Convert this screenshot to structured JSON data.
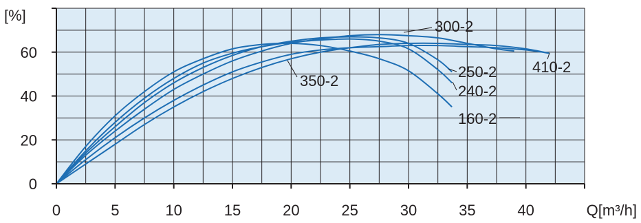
{
  "chart_data": {
    "type": "line",
    "title": "",
    "ylabel": "[%]",
    "xlabel": "Q[m³/h]",
    "xlim": [
      0,
      45
    ],
    "ylim": [
      0,
      80
    ],
    "xticks": [
      0,
      5,
      10,
      15,
      20,
      25,
      30,
      35,
      40
    ],
    "yticks": [
      0,
      20,
      40,
      60
    ],
    "grid": true,
    "colors": {
      "plot_bg": "#dcebf6",
      "grid": "#231f20",
      "series": "#1f6fb4",
      "axis": "#231f20"
    },
    "series": [
      {
        "name": "160-2",
        "x": [
          0,
          2.5,
          5,
          7.5,
          10,
          12.5,
          15,
          17.5,
          20,
          22.5,
          25,
          27.5,
          30,
          32.5,
          33.7
        ],
        "y": [
          0,
          17,
          31,
          42,
          51,
          57,
          61.5,
          63.5,
          64,
          63,
          60.5,
          57,
          51.5,
          41,
          35
        ]
      },
      {
        "name": "240-2",
        "x": [
          0,
          2.5,
          5,
          7.5,
          10,
          12.5,
          15,
          17.5,
          20,
          22.5,
          25,
          27.5,
          30,
          32.5,
          33.7
        ],
        "y": [
          0,
          15,
          28,
          39,
          48,
          55,
          59.5,
          62.5,
          64.5,
          65.5,
          66,
          65,
          61.5,
          52,
          46
        ]
      },
      {
        "name": "250-2",
        "x": [
          0,
          2.5,
          5,
          7.5,
          10,
          12.5,
          15,
          17.5,
          20,
          22.5,
          25,
          27.5,
          30,
          32.5,
          33.7
        ],
        "y": [
          0,
          14,
          26,
          37,
          46,
          53,
          58.5,
          62.5,
          65,
          66.5,
          67,
          66.5,
          64,
          56.5,
          51
        ]
      },
      {
        "name": "300-2",
        "x": [
          0,
          2.5,
          5,
          7.5,
          10,
          12.5,
          15,
          17.5,
          20,
          22.5,
          25,
          27.5,
          30,
          32.5,
          35,
          37.5,
          39
        ],
        "y": [
          0,
          13,
          24,
          34,
          43,
          50,
          56,
          60.5,
          64,
          66,
          67.5,
          68,
          67.5,
          66.5,
          64,
          61.5,
          60.5
        ]
      },
      {
        "name": "350-2",
        "x": [
          0,
          2.5,
          5,
          7.5,
          10,
          12.5,
          15,
          17.5,
          20,
          22.5,
          25,
          27.5,
          30,
          32.5,
          35,
          37.5,
          40,
          42
        ],
        "y": [
          0,
          11,
          21,
          30,
          38,
          45,
          51,
          55.5,
          59,
          61,
          62,
          62.5,
          63,
          63,
          62.5,
          62,
          61,
          59.5
        ]
      },
      {
        "name": "410-2",
        "x": [
          0,
          2.5,
          5,
          7.5,
          10,
          12.5,
          15,
          17.5,
          20,
          22.5,
          25,
          27.5,
          30,
          32.5,
          35,
          37.5,
          40,
          42
        ],
        "y": [
          0,
          9,
          18,
          27,
          35,
          42,
          48,
          53,
          57,
          60,
          62,
          63.5,
          64,
          64,
          63.5,
          63,
          61.5,
          59.5
        ]
      }
    ],
    "annotations": [
      {
        "text": "300-2",
        "series": "300-2",
        "at_x": 29.5
      },
      {
        "text": "350-2",
        "series": "350-2",
        "at_x": 19.5
      },
      {
        "text": "250-2",
        "series": "250-2",
        "at_x": 33.7
      },
      {
        "text": "240-2",
        "series": "240-2",
        "at_x": 33.7
      },
      {
        "text": "160-2",
        "series": "160-2",
        "at_x": 33.7
      },
      {
        "text": "410-2",
        "series": "410-2",
        "at_x": 42
      }
    ]
  }
}
